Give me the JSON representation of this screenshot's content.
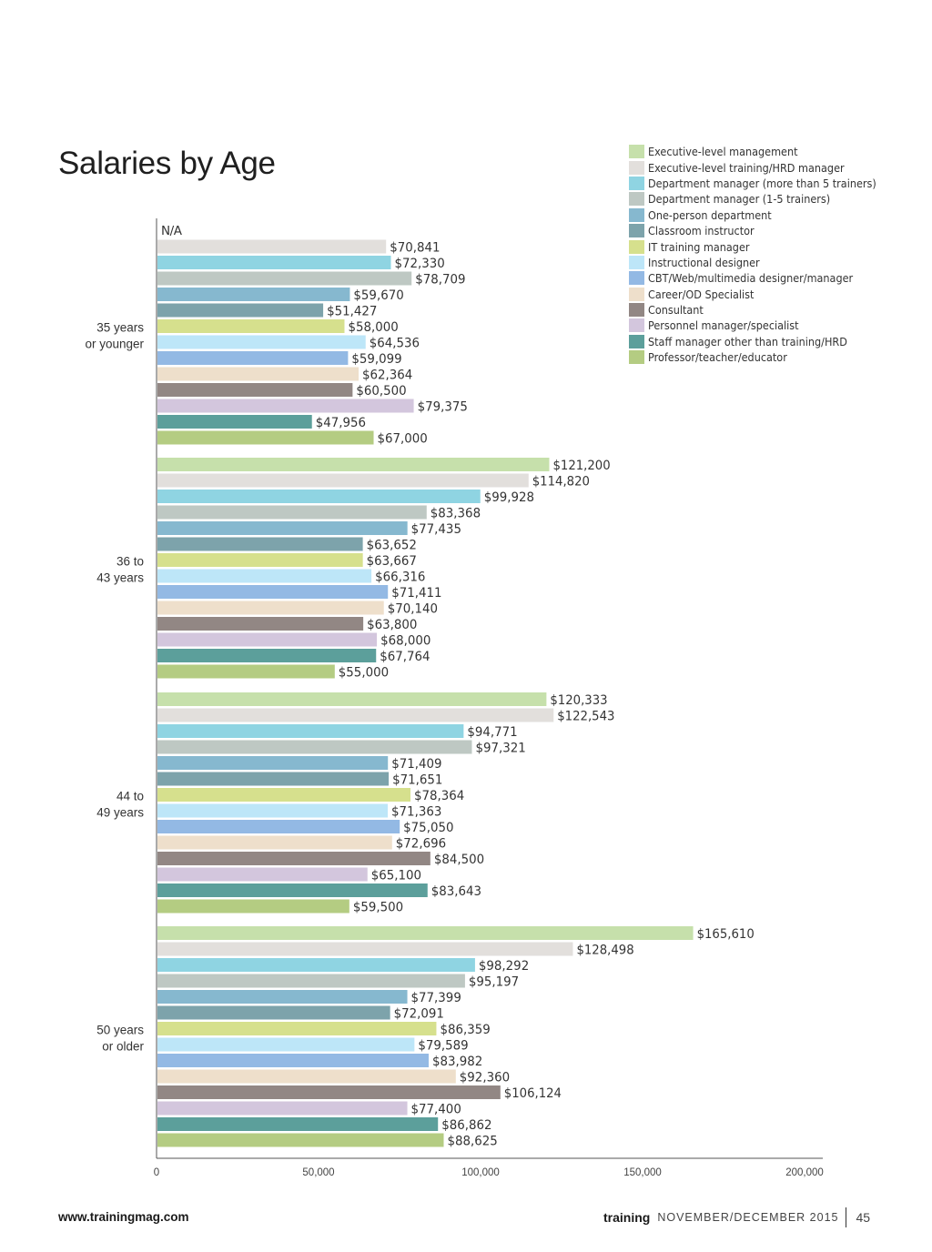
{
  "page": {
    "title": "Salaries by Age",
    "footer": {
      "url": "www.trainingmag.com",
      "brand": "training",
      "issue": "NOVEMBER/DECEMBER 2015",
      "page_number": "45"
    }
  },
  "chart_data": {
    "type": "bar",
    "orientation": "horizontal",
    "title": "Salaries by Age",
    "xlabel": "",
    "ylabel": "",
    "xlim": [
      0,
      200000
    ],
    "x_ticks": [
      "0",
      "50,000",
      "100,000",
      "150,000",
      "200,000"
    ],
    "x_tick_values": [
      0,
      50000,
      100000,
      150000,
      200000
    ],
    "grid": false,
    "legend_position": "top-right",
    "categories": [
      {
        "label": "35 years\nor younger",
        "line1": "35 years",
        "line2": "or younger"
      },
      {
        "label": "36 to\n43 years",
        "line1": "36 to",
        "line2": "43 years"
      },
      {
        "label": "44 to\n49 years",
        "line1": "44 to",
        "line2": "49 years"
      },
      {
        "label": "50 years\nor older",
        "line1": "50 years",
        "line2": "or older"
      }
    ],
    "series": [
      {
        "name": "Executive-level management",
        "color": "#c6e0ab",
        "values": [
          null,
          121200,
          120333,
          165610
        ],
        "labels": [
          "N/A",
          "$121,200",
          "$120,333",
          "$165,610"
        ]
      },
      {
        "name": "Executive-level training/HRD manager",
        "color": "#e2dfdc",
        "values": [
          70841,
          114820,
          122543,
          128498
        ],
        "labels": [
          "$70,841",
          "$114,820",
          "$122,543",
          "$128,498"
        ]
      },
      {
        "name": "Department manager (more than 5 trainers)",
        "color": "#8fd4e2",
        "values": [
          72330,
          99928,
          94771,
          98292
        ],
        "labels": [
          "$72,330",
          "$99,928",
          "$94,771",
          "$98,292"
        ]
      },
      {
        "name": "Department manager (1-5 trainers)",
        "color": "#bec8c3",
        "values": [
          78709,
          83368,
          97321,
          95197
        ],
        "labels": [
          "$78,709",
          "$83,368",
          "$97,321",
          "$95,197"
        ]
      },
      {
        "name": "One-person department",
        "color": "#86b8cf",
        "values": [
          59670,
          77435,
          71409,
          77399
        ],
        "labels": [
          "$59,670",
          "$77,435",
          "$71,409",
          "$77,399"
        ]
      },
      {
        "name": "Classroom instructor",
        "color": "#7da3ab",
        "values": [
          51427,
          63652,
          71651,
          72091
        ],
        "labels": [
          "$51,427",
          "$63,652",
          "$71,651",
          "$72,091"
        ]
      },
      {
        "name": "IT training manager",
        "color": "#d6e08d",
        "values": [
          58000,
          63667,
          78364,
          86359
        ],
        "labels": [
          "$58,000",
          "$63,667",
          "$78,364",
          "$86,359"
        ]
      },
      {
        "name": "Instructional designer",
        "color": "#bde6f8",
        "values": [
          64536,
          66316,
          71363,
          79589
        ],
        "labels": [
          "$64,536",
          "$66,316",
          "$71,363",
          "$79,589"
        ]
      },
      {
        "name": "CBT/Web/multimedia designer/manager",
        "color": "#93b9e4",
        "values": [
          59099,
          71411,
          75050,
          83982
        ],
        "labels": [
          "$59,099",
          "$71,411",
          "$75,050",
          "$83,982"
        ]
      },
      {
        "name": "Career/OD Specialist",
        "color": "#eedfcb",
        "values": [
          62364,
          70140,
          72696,
          92360
        ],
        "labels": [
          "$62,364",
          "$70,140",
          "$72,696",
          "$92,360"
        ]
      },
      {
        "name": "Consultant",
        "color": "#928784",
        "values": [
          60500,
          63800,
          84500,
          106124
        ],
        "labels": [
          "$60,500",
          "$63,800",
          "$84,500",
          "$106,124"
        ]
      },
      {
        "name": "Personnel manager/specialist",
        "color": "#d3c6dd",
        "values": [
          79375,
          68000,
          65100,
          77400
        ],
        "labels": [
          "$79,375",
          "$68,000",
          "$65,100",
          "$77,400"
        ]
      },
      {
        "name": "Staff manager other than training/HRD",
        "color": "#5c9f9b",
        "values": [
          47956,
          67764,
          83643,
          86862
        ],
        "labels": [
          "$47,956",
          "$67,764",
          "$83,643",
          "$86,862"
        ]
      },
      {
        "name": "Professor/teacher/educator",
        "color": "#b4cc82",
        "values": [
          67000,
          55000,
          59500,
          88625
        ],
        "labels": [
          "$67,000",
          "$55,000",
          "$59,500",
          "$88,625"
        ]
      }
    ]
  }
}
